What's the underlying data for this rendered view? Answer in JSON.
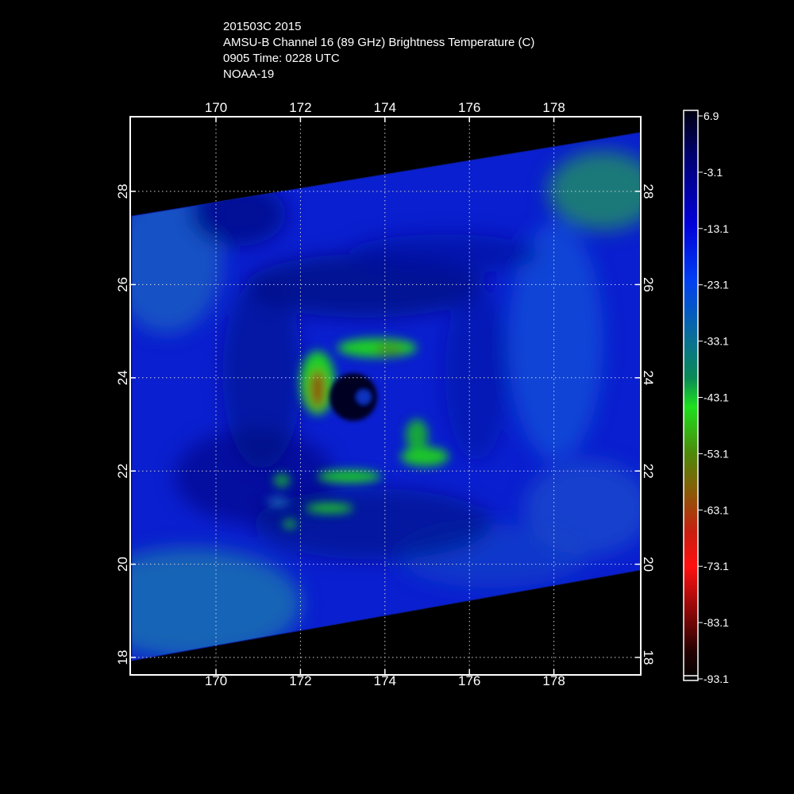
{
  "header": {
    "line1": "201503C 2015",
    "line2": "AMSU-B Channel 16 (89 GHz) Brightness Temperature (C)",
    "line3": "0905 Time: 0228 UTC",
    "line4": "NOAA-19"
  },
  "map": {
    "lon_range": [
      168,
      180
    ],
    "lat_range": [
      17.5,
      29.5
    ],
    "lon_ticks": [
      "170",
      "172",
      "174",
      "176",
      "178"
    ],
    "lat_ticks": [
      "18",
      "20",
      "22",
      "24",
      "26",
      "28"
    ],
    "storm_center": {
      "lon": 173.2,
      "lat": 23.6
    },
    "swath": "tilted satellite swath, background outside swath black"
  },
  "colorbar": {
    "labels": [
      "6.9",
      "-3.1",
      "-13.1",
      "-23.1",
      "-33.1",
      "-43.1",
      "-53.1",
      "-63.1",
      "-73.1",
      "-83.1",
      "-93.1"
    ],
    "colors": [
      "#000010",
      "#000070",
      "#0000d8",
      "#0040f0",
      "#0a6f96",
      "#0a8a55",
      "#1ee01e",
      "#4c8a0a",
      "#8a5a08",
      "#c81e10",
      "#ff1010",
      "#8a0808",
      "#220000",
      "#000000"
    ]
  }
}
